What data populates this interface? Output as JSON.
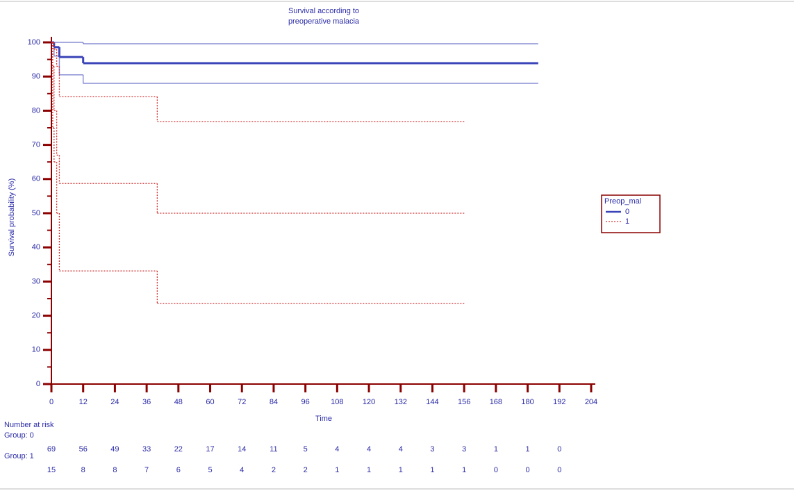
{
  "chart_data": {
    "type": "step",
    "title": [
      "Survival according to",
      "preoperative malacia"
    ],
    "x_label": "Time",
    "y_label": "Survival probability (%)",
    "xlim": [
      0,
      204
    ],
    "xticks": [
      0,
      12,
      24,
      36,
      48,
      60,
      72,
      84,
      96,
      108,
      120,
      132,
      144,
      156,
      168,
      180,
      192,
      204
    ],
    "ylim": [
      0,
      100
    ],
    "yticks": [
      0,
      10,
      20,
      30,
      40,
      50,
      60,
      70,
      80,
      90,
      100
    ],
    "legend_title": "Preop_mal",
    "legend": "right",
    "series": [
      {
        "name": "0",
        "color": "#3a44b8",
        "dash": false,
        "x": [
          0,
          1,
          3,
          12,
          184
        ],
        "values": [
          100,
          98.6,
          95.7,
          93.9,
          93.9
        ],
        "upper": [
          100,
          100,
          100,
          99.6,
          99.6
        ],
        "lower": [
          100,
          96,
          90.5,
          88,
          88
        ]
      },
      {
        "name": "1",
        "color": "#d03030",
        "dash": true,
        "x": [
          0,
          0.5,
          1,
          2,
          3,
          40,
          156
        ],
        "values": [
          100,
          93,
          80,
          67,
          58.7,
          50,
          50
        ],
        "upper": [
          100,
          100,
          98,
          93,
          84.1,
          76.8,
          76.8
        ],
        "lower": [
          100,
          75,
          65,
          50,
          33.1,
          23.6,
          23.6
        ]
      }
    ],
    "risk_table": {
      "title": "Number at risk",
      "rows": [
        {
          "label": "Group: 0",
          "counts": [
            69,
            56,
            49,
            33,
            22,
            17,
            14,
            11,
            5,
            4,
            4,
            4,
            3,
            3,
            1,
            1,
            0
          ]
        },
        {
          "label": "Group: 1",
          "counts": [
            15,
            8,
            8,
            7,
            6,
            5,
            4,
            2,
            2,
            1,
            1,
            1,
            1,
            1,
            0,
            0,
            0
          ]
        }
      ]
    }
  }
}
